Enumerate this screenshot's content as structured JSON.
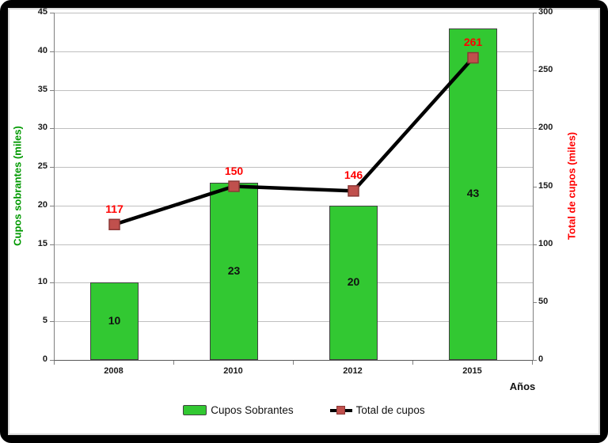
{
  "chart_data": {
    "type": "combo",
    "categories": [
      "2008",
      "2010",
      "2012",
      "2015"
    ],
    "series": [
      {
        "name": "Cupos Sobrantes",
        "type": "bar",
        "axis": "left",
        "values": [
          10,
          23,
          20,
          43
        ],
        "color": "#32c832",
        "border_color": "#404040",
        "label_color": "#111111"
      },
      {
        "name": "Total de cupos",
        "type": "line",
        "axis": "right",
        "values": [
          117,
          150,
          146,
          261
        ],
        "line_color": "#000000",
        "marker_color": "#c0504d",
        "marker_border": "#8c3836",
        "label_color": "#ff0000"
      }
    ],
    "left_axis": {
      "title": "Cupos sobrantes (miles)",
      "color": "#009900",
      "min": 0,
      "max": 45,
      "step": 5,
      "ticks": [
        0,
        5,
        10,
        15,
        20,
        25,
        30,
        35,
        40,
        45
      ]
    },
    "right_axis": {
      "title": "Total de cupos (miles)",
      "color": "#ff0000",
      "min": 0,
      "max": 300,
      "step": 50,
      "ticks": [
        0,
        50,
        100,
        150,
        200,
        250,
        300
      ]
    },
    "x_axis": {
      "title": "Años"
    },
    "legend": {
      "position": "bottom",
      "entries": [
        "Cupos Sobrantes",
        "Total de cupos"
      ]
    },
    "grid": true,
    "background": "#ffffff",
    "frame_color": "#000000"
  }
}
